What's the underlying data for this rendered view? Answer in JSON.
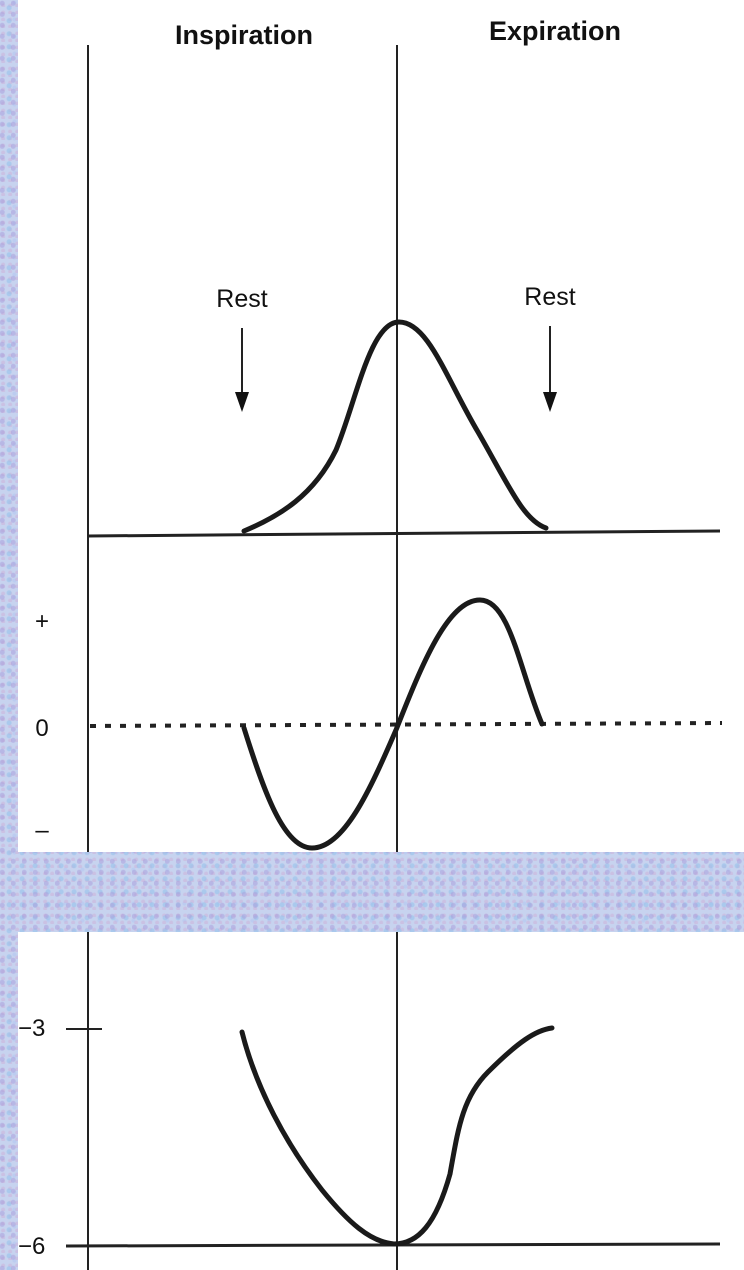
{
  "chart_data": [
    {
      "type": "line",
      "panel": "top",
      "title": "",
      "headers": [
        "Inspiration",
        "Expiration"
      ],
      "annotations": [
        {
          "text": "Rest",
          "x": 0.0
        },
        {
          "text": "Rest",
          "x": 1.0
        }
      ],
      "series": [
        {
          "x": [
            0,
            0.1,
            0.2,
            0.3,
            0.4,
            0.5,
            0.6,
            0.7,
            0.8,
            0.9,
            1.0
          ],
          "y": [
            0,
            0.05,
            0.15,
            0.35,
            0.7,
            1.0,
            0.75,
            0.45,
            0.2,
            0.05,
            0
          ]
        }
      ],
      "ylim": [
        0,
        1.05
      ]
    },
    {
      "type": "line",
      "panel": "middle",
      "yticks": [
        "+",
        "0",
        "–"
      ],
      "baseline": "0 (dotted)",
      "series": [
        {
          "x": [
            0,
            0.1,
            0.2,
            0.3,
            0.4,
            0.5,
            0.6,
            0.7,
            0.8,
            0.9,
            1.0
          ],
          "y": [
            0,
            -0.6,
            -1.0,
            -0.8,
            -0.4,
            0,
            0.5,
            0.85,
            1.0,
            0.5,
            0
          ]
        }
      ],
      "ylim": [
        -1,
        1
      ]
    },
    {
      "type": "line",
      "panel": "bottom",
      "yticks": [
        "−3",
        "−6"
      ],
      "series": [
        {
          "x": [
            0,
            0.1,
            0.2,
            0.3,
            0.4,
            0.5,
            0.6,
            0.7,
            0.8,
            0.9,
            1.0
          ],
          "y": [
            -3,
            -3.8,
            -4.6,
            -5.3,
            -5.8,
            -6,
            -5.4,
            -3.9,
            -3.4,
            -3.15,
            -3.05
          ]
        }
      ],
      "ylim": [
        -6,
        -3
      ]
    }
  ]
}
